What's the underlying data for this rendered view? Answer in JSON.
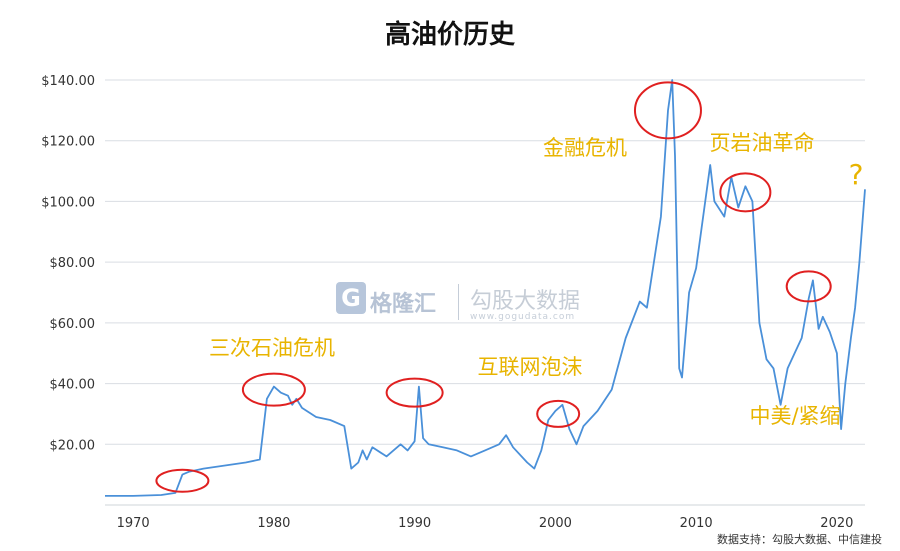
{
  "title": "高油价历史",
  "watermark": {
    "logo_letter": "G",
    "logo_text": "格隆汇",
    "text": "勾股大数据",
    "url": "www.gogudata.com"
  },
  "source_note": "数据支持：勾股大数据、中信建投",
  "colors": {
    "line": "#4a90d9",
    "annotation_text": "#e8b400",
    "ellipse": "#e02020",
    "grid": "#d9dde3"
  },
  "chart_data": {
    "type": "line",
    "title": "高油价历史",
    "xlabel": "",
    "ylabel": "",
    "xlim": [
      1968,
      2022
    ],
    "ylim": [
      0,
      140
    ],
    "x_ticks": [
      1970,
      1980,
      1990,
      2000,
      2010,
      2020
    ],
    "x_tick_labels": [
      "1970",
      "1980",
      "1990",
      "2000",
      "2010",
      "2020"
    ],
    "y_ticks": [
      20,
      40,
      60,
      80,
      100,
      120,
      140
    ],
    "y_tick_labels": [
      "$20.00",
      "$40.00",
      "$60.00",
      "$80.00",
      "$100.00",
      "$120.00",
      "$140.00"
    ],
    "grid": "horizontal",
    "series": [
      {
        "x": [
          1968,
          1970,
          1972,
          1973,
          1973.5,
          1974,
          1975,
          1978,
          1979,
          1979.5,
          1980,
          1980.5,
          1981,
          1981.3,
          1981.6,
          1982,
          1983,
          1984,
          1985,
          1985.5,
          1986,
          1986.3,
          1986.6,
          1987,
          1988,
          1989,
          1989.5,
          1990,
          1990.3,
          1990.6,
          1991,
          1992,
          1993,
          1994,
          1995,
          1996,
          1996.5,
          1997,
          1998,
          1998.5,
          1999,
          1999.5,
          2000,
          2000.5,
          2001,
          2001.5,
          2002,
          2003,
          2004,
          2005,
          2006,
          2006.5,
          2007,
          2007.5,
          2008,
          2008.3,
          2008.5,
          2008.8,
          2009,
          2009.5,
          2010,
          2011,
          2011.3,
          2012,
          2012.5,
          2013,
          2013.5,
          2014,
          2014.5,
          2015,
          2015.5,
          2016,
          2016.5,
          2017,
          2017.5,
          2018,
          2018.3,
          2018.7,
          2019,
          2019.5,
          2020,
          2020.3,
          2020.6,
          2021,
          2021.3,
          2021.6,
          2022
        ],
        "y": [
          3,
          3,
          3.3,
          4,
          10,
          11,
          12,
          14,
          15,
          35,
          39,
          37,
          36,
          33,
          35,
          32,
          29,
          28,
          26,
          12,
          14,
          18,
          15,
          19,
          16,
          20,
          18,
          21,
          39,
          22,
          20,
          19,
          18,
          16,
          18,
          20,
          23,
          19,
          14,
          12,
          18,
          28,
          31,
          33,
          25,
          20,
          26,
          31,
          38,
          55,
          67,
          65,
          80,
          95,
          130,
          140,
          115,
          45,
          42,
          70,
          78,
          112,
          100,
          95,
          108,
          98,
          105,
          100,
          60,
          48,
          45,
          33,
          45,
          50,
          55,
          68,
          74,
          58,
          62,
          57,
          50,
          25,
          40,
          55,
          65,
          80,
          104
        ]
      }
    ],
    "annotations": [
      {
        "label": "三次石油危机",
        "x": 1973.5,
        "y": 8
      },
      {
        "label": "",
        "x": 1980,
        "y": 38
      },
      {
        "label": "",
        "x": 1990,
        "y": 37
      },
      {
        "label": "互联网泡沫",
        "x": 2000.2,
        "y": 30
      },
      {
        "label": "金融危机",
        "x": 2008,
        "y": 130
      },
      {
        "label": "页岩油革命",
        "x": 2013.5,
        "y": 103
      },
      {
        "label": "中美/紧缩",
        "x": 2018,
        "y": 72
      },
      {
        "label": "?",
        "x": 2021.5,
        "y": 108
      }
    ]
  }
}
